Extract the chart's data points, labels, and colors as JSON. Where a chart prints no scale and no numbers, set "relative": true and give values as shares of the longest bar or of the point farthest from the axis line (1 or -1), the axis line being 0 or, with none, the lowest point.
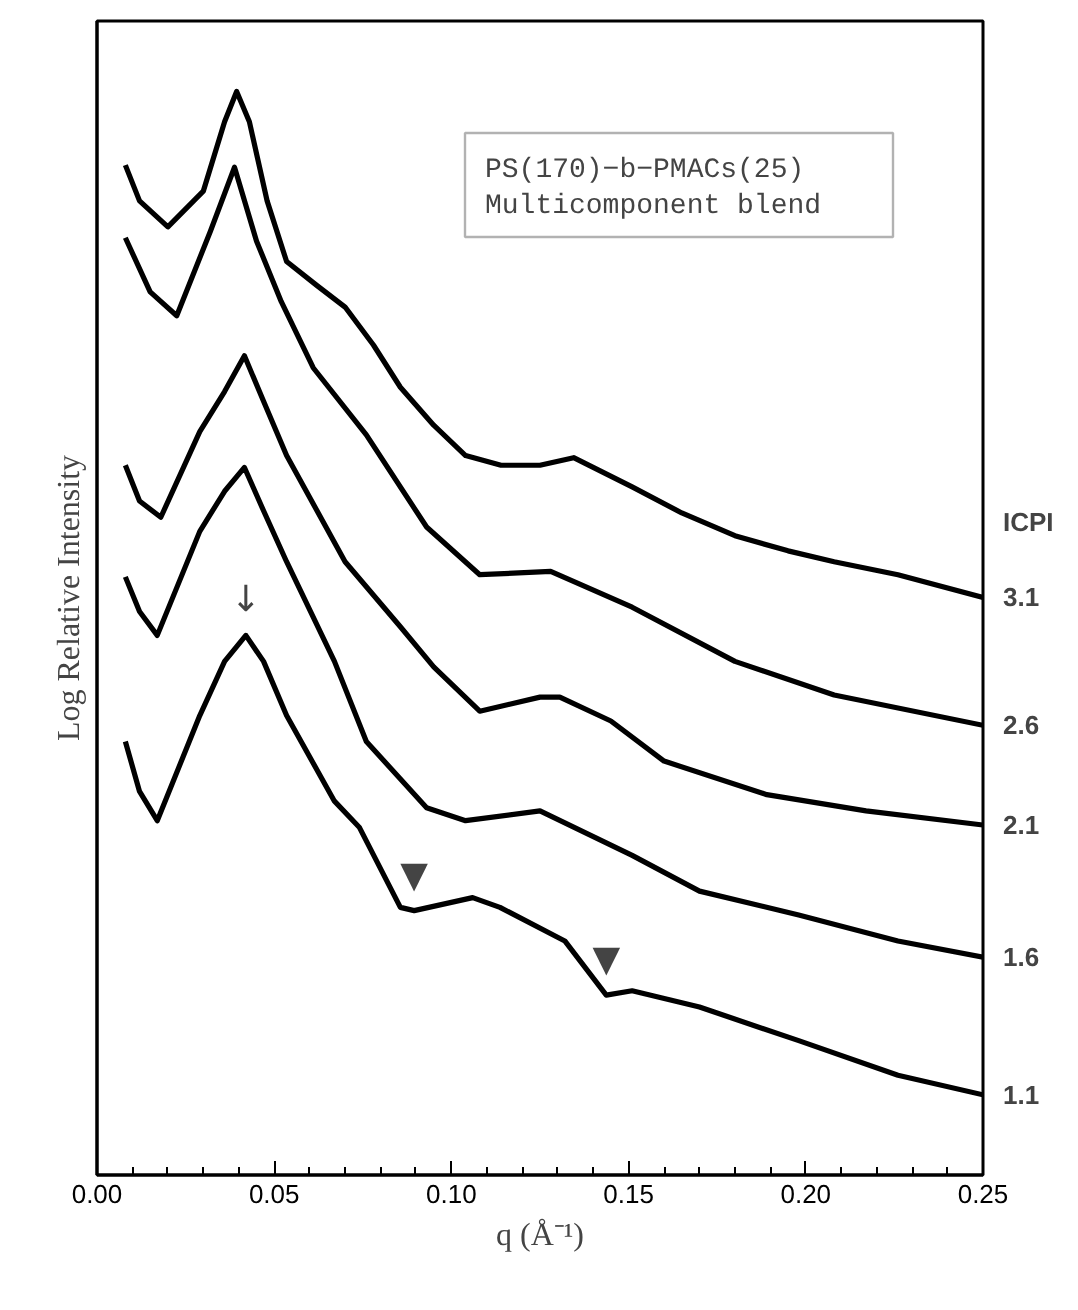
{
  "chart_data": {
    "type": "line",
    "title": "PS(170)−b−PMACs(25)",
    "subtitle": "Multicomponent blend",
    "xlabel": "q (Å⁻¹)",
    "ylabel": "Log Relative Intensity",
    "legend_title": "ICPI",
    "relative": true,
    "tick_labels": "x",
    "xlim": [
      0.0,
      0.25
    ],
    "xticks": [
      {
        "value": 0.0,
        "label": "0.00"
      },
      0.05,
      {
        "value": 0.1,
        "label": "0.10"
      },
      0.15,
      {
        "value": 0.2,
        "label": "0.20"
      },
      0.25
    ],
    "line_style": "solid",
    "series": [
      {
        "name": "3.1",
        "color": "#000000",
        "x": [
          0.008,
          0.012,
          0.02,
          0.03,
          0.036,
          0.0394,
          0.043,
          0.048,
          0.0535,
          0.062,
          0.07,
          0.078,
          0.0856,
          0.095,
          0.104,
          0.114,
          0.125,
          0.1345,
          0.151,
          0.165,
          0.18,
          0.195,
          0.208,
          0.226,
          0.25
        ],
        "values": [
          0.932,
          0.899,
          0.875,
          0.908,
          0.972,
          1.0,
          0.972,
          0.899,
          0.843,
          0.821,
          0.801,
          0.766,
          0.727,
          0.692,
          0.664,
          0.655,
          0.655,
          0.662,
          0.635,
          0.611,
          0.59,
          0.576,
          0.566,
          0.554,
          0.533
        ]
      },
      {
        "name": "2.6",
        "color": "#000000",
        "x": [
          0.008,
          0.015,
          0.0225,
          0.032,
          0.0388,
          0.045,
          0.052,
          0.061,
          0.076,
          0.093,
          0.108,
          0.128,
          0.151,
          0.18,
          0.208,
          0.25
        ],
        "values": [
          0.865,
          0.815,
          0.793,
          0.871,
          0.93,
          0.862,
          0.806,
          0.745,
          0.683,
          0.598,
          0.554,
          0.557,
          0.524,
          0.474,
          0.443,
          0.415
        ]
      },
      {
        "name": "2.1",
        "color": "#000000",
        "x": [
          0.008,
          0.012,
          0.018,
          0.029,
          0.036,
          0.0416,
          0.047,
          0.0535,
          0.07,
          0.0856,
          0.095,
          0.108,
          0.125,
          0.1306,
          0.145,
          0.16,
          0.189,
          0.217,
          0.25
        ],
        "values": [
          0.655,
          0.622,
          0.607,
          0.686,
          0.723,
          0.756,
          0.714,
          0.664,
          0.566,
          0.506,
          0.469,
          0.428,
          0.441,
          0.441,
          0.419,
          0.382,
          0.351,
          0.336,
          0.323
        ]
      },
      {
        "name": "1.6",
        "color": "#000000",
        "x": [
          0.008,
          0.012,
          0.017,
          0.029,
          0.036,
          0.0416,
          0.047,
          0.0535,
          0.067,
          0.076,
          0.093,
          0.104,
          0.125,
          0.151,
          0.17,
          0.198,
          0.226,
          0.25
        ],
        "values": [
          0.552,
          0.52,
          0.498,
          0.594,
          0.631,
          0.653,
          0.613,
          0.566,
          0.474,
          0.4,
          0.339,
          0.327,
          0.336,
          0.295,
          0.262,
          0.24,
          0.216,
          0.201
        ]
      },
      {
        "name": "1.1",
        "color": "#000000",
        "x": [
          0.008,
          0.012,
          0.017,
          0.029,
          0.036,
          0.042,
          0.047,
          0.0535,
          0.067,
          0.074,
          0.0856,
          0.0895,
          0.106,
          0.1137,
          0.132,
          0.1437,
          0.151,
          0.17,
          0.198,
          0.226,
          0.25
        ],
        "values": [
          0.4,
          0.354,
          0.327,
          0.424,
          0.474,
          0.498,
          0.474,
          0.424,
          0.345,
          0.321,
          0.247,
          0.244,
          0.256,
          0.247,
          0.216,
          0.166,
          0.17,
          0.155,
          0.124,
          0.092,
          0.074
        ]
      }
    ],
    "annotations": [
      {
        "text": "↓",
        "x": 0.042,
        "y": 0.498
      },
      {
        "text": "▼",
        "x": 0.0895,
        "y": 0.244
      },
      {
        "text": "▼",
        "x": 0.1437,
        "y": 0.166
      }
    ]
  }
}
